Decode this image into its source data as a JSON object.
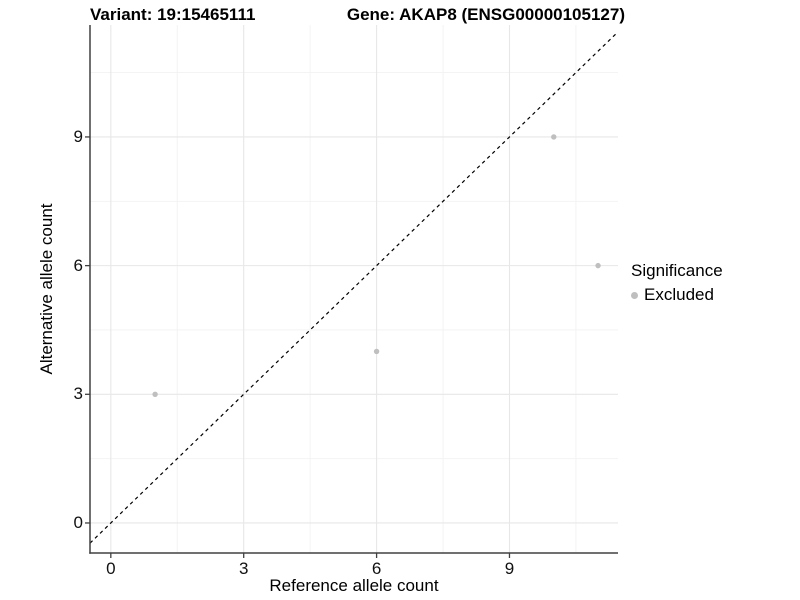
{
  "header": {
    "title_left": "Variant: 19:15465111",
    "title_right": "Gene: AKAP8 (ENSG00000105127)"
  },
  "chart_data": {
    "type": "scatter",
    "xlabel": "Reference allele count",
    "ylabel": "Alternative allele count",
    "x_ticks": [
      0,
      3,
      6,
      9
    ],
    "y_ticks": [
      0,
      3,
      6,
      9
    ],
    "x_minor_ticks": [
      1.5,
      4.5,
      7.5,
      10.5
    ],
    "y_minor_ticks": [
      1.5,
      4.5,
      7.5,
      10.5
    ],
    "xlim": [
      -0.47,
      11.45
    ],
    "ylim": [
      -0.7,
      11.61
    ],
    "grid": {
      "on": true,
      "major_color": "#e7e7e7",
      "minor_color": "#f2f2f2"
    },
    "axis_line_color": "#404040",
    "identity_line": {
      "style": "dashed",
      "color": "#000000",
      "slope": 1,
      "intercept": 0
    },
    "series": [
      {
        "name": "Excluded",
        "color": "#bfbfbf",
        "points": [
          [
            1,
            3
          ],
          [
            6,
            4
          ],
          [
            10,
            9
          ],
          [
            11,
            6
          ]
        ]
      }
    ],
    "legend": {
      "position": "right",
      "title": "Significance",
      "items": [
        {
          "label": "Excluded",
          "color": "#bfbfbf"
        }
      ]
    }
  }
}
